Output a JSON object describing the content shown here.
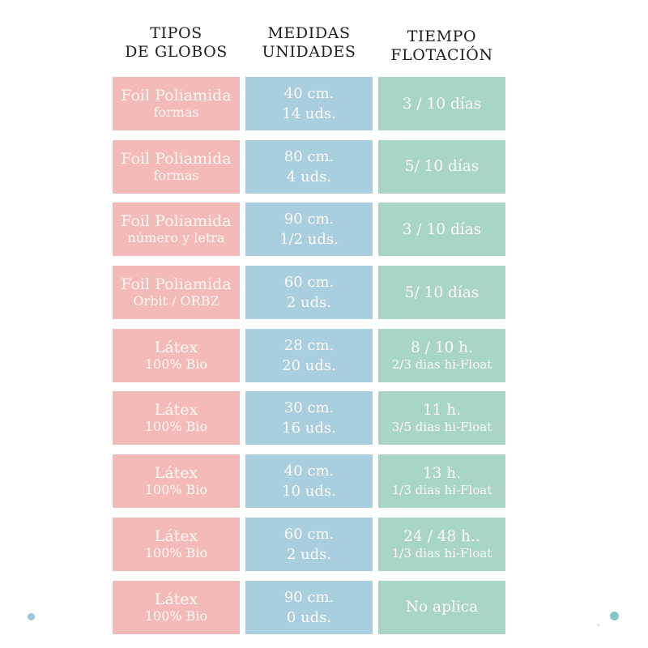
{
  "colors": {
    "type_cell": "#f3bab8",
    "size_cell": "#a9cfdf",
    "float_cell": "#a8d5c7",
    "cell_text": "#fdf9f5",
    "header_text": "#1e1e1e",
    "dot_left": "#9cc6da",
    "dot_right": "#82c6ca",
    "speck": "#c9ced0"
  },
  "chart_data": {
    "type": "table",
    "title": "",
    "columns": [
      {
        "line1": "TIPOS",
        "line2": "DE GLOBOS"
      },
      {
        "line1": "MEDIDAS",
        "line2": "UNIDADES"
      },
      {
        "line1": "TIEMPO",
        "line2": "FLOTACIÓN"
      }
    ],
    "rows": [
      {
        "tipo": "Foil Poliamida",
        "tipo_sub": "formas",
        "medida": "40 cm.",
        "unidades": "14 uds.",
        "flotacion": "3 / 10 días",
        "flotacion_sub": ""
      },
      {
        "tipo": "Foil Poliamida",
        "tipo_sub": "formas",
        "medida": "80 cm.",
        "unidades": "4 uds.",
        "flotacion": "5/ 10 días",
        "flotacion_sub": ""
      },
      {
        "tipo": "Foil Poliamida",
        "tipo_sub": "número y letra",
        "medida": "90 cm.",
        "unidades": "1/2 uds.",
        "flotacion": "3 / 10 días",
        "flotacion_sub": ""
      },
      {
        "tipo": "Foil Poliamida",
        "tipo_sub": "Orbit / ORBZ",
        "medida": "60 cm.",
        "unidades": "2 uds.",
        "flotacion": "5/ 10 días",
        "flotacion_sub": ""
      },
      {
        "tipo": "Látex",
        "tipo_sub": "100% Bio",
        "medida": "28 cm.",
        "unidades": "20 uds.",
        "flotacion": "8 / 10 h.",
        "flotacion_sub": "2/3 dias hi-Float"
      },
      {
        "tipo": "Látex",
        "tipo_sub": "100% Bio",
        "medida": "30 cm.",
        "unidades": "16 uds.",
        "flotacion": "11 h.",
        "flotacion_sub": "3/5 dias hi-Float"
      },
      {
        "tipo": "Látex",
        "tipo_sub": "100% Bio",
        "medida": "40 cm.",
        "unidades": "10 uds.",
        "flotacion": "13 h.",
        "flotacion_sub": "1/3 dias hi-Float"
      },
      {
        "tipo": "Látex",
        "tipo_sub": "100% Bio",
        "medida": "60 cm.",
        "unidades": "2 uds.",
        "flotacion": "24 / 48 h..",
        "flotacion_sub": "1/3 dias hi-Float"
      },
      {
        "tipo": "Látex",
        "tipo_sub": "100% Bio",
        "medida": "90 cm.",
        "unidades": "0 uds.",
        "flotacion": "No aplica",
        "flotacion_sub": ""
      }
    ]
  }
}
